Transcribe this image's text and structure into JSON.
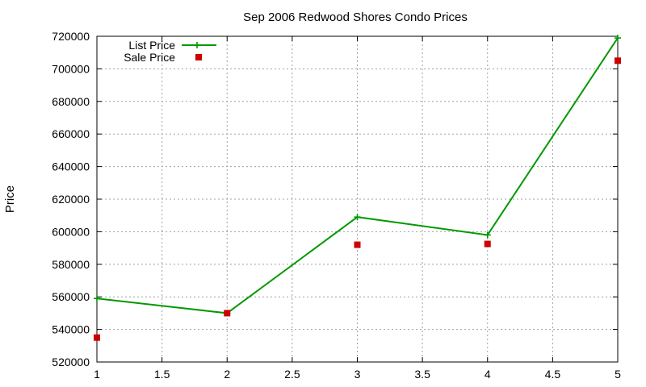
{
  "chart_data": {
    "type": "line",
    "title": "Sep 2006 Redwood Shores Condo Prices",
    "xlabel": "",
    "ylabel": "Price",
    "xlim": [
      1,
      5
    ],
    "ylim": [
      520000,
      720000
    ],
    "x_ticks": [
      "1",
      "1.5",
      "2",
      "2.5",
      "3",
      "3.5",
      "4",
      "4.5",
      "5"
    ],
    "y_ticks": [
      "520000",
      "540000",
      "560000",
      "580000",
      "600000",
      "620000",
      "640000",
      "660000",
      "680000",
      "700000",
      "720000"
    ],
    "grid": true,
    "legend_position": "top-left",
    "series": [
      {
        "name": "List Price",
        "style": "line+cross",
        "color": "#009900",
        "x": [
          1,
          2,
          3,
          4,
          5
        ],
        "y": [
          559000,
          550000,
          609000,
          598000,
          719000
        ]
      },
      {
        "name": "Sale Price",
        "style": "square-points",
        "color": "#cc0000",
        "x": [
          1,
          2,
          3,
          4,
          5
        ],
        "y": [
          535000,
          550000,
          592000,
          592500,
          705000
        ]
      }
    ]
  }
}
